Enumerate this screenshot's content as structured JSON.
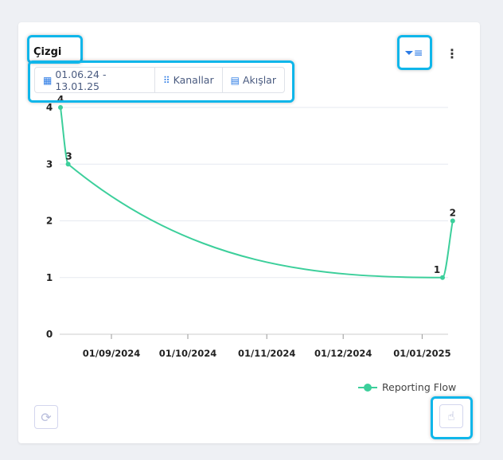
{
  "widget": {
    "title": "Çizgi",
    "date_range": "01.06.24 - 13.01.25",
    "channels_label": "Kanallar",
    "flows_label": "Akışlar",
    "filter_icon": "filter-list-icon",
    "menu_icon": "kebab-menu-icon",
    "refresh_icon": "refresh-icon",
    "interaction_icon": "hand-pointer-icon",
    "highlight_color": "#0fb6ea"
  },
  "chart_data": {
    "type": "line",
    "x_type": "date",
    "x_ticks": [
      "01/09/2024",
      "01/10/2024",
      "01/11/2024",
      "01/12/2024",
      "01/01/2025"
    ],
    "y_ticks": [
      "0",
      "1",
      "2",
      "3",
      "4"
    ],
    "ylim": [
      0,
      4
    ],
    "grid": true,
    "legend": "bottom-right",
    "series": [
      {
        "name": "Reporting Flow",
        "color": "#3ccf9b",
        "points": [
          {
            "x": "2024-08-12",
            "y": 4
          },
          {
            "x": "2024-08-15",
            "y": 3
          },
          {
            "x": "2025-01-09",
            "y": 1
          },
          {
            "x": "2025-01-13",
            "y": 2
          }
        ]
      }
    ]
  }
}
